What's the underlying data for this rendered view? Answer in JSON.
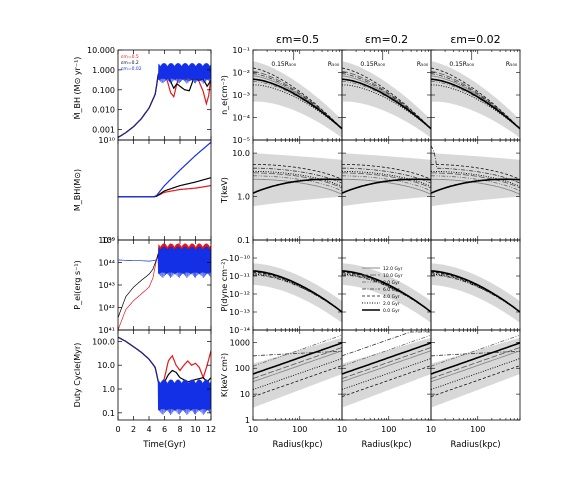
{
  "chart_data": [
    {
      "type": "line",
      "panel": "left-1",
      "ylabel": "Ṁ_BH (M⊙ yr⁻¹)",
      "y_scale": "log",
      "ylim": [
        0.0003,
        10
      ],
      "y_ticks": [
        {
          "value": 10,
          "label": "10.000"
        },
        {
          "value": 1,
          "label": "1.000"
        },
        {
          "value": 0.1,
          "label": "0.100"
        },
        {
          "value": 0.01,
          "label": "0.010"
        },
        {
          "value": 0.001,
          "label": "0.001"
        }
      ],
      "xlim": [
        0,
        12
      ],
      "legend": [
        "εm=0.5",
        "εm=0.2",
        "εm=0.02"
      ],
      "legend_colors": [
        "#e8161b",
        "#000000",
        "#1430e6"
      ],
      "series": [
        {
          "color": "#e8161b",
          "x": [
            0,
            1,
            2,
            3,
            4,
            4.8,
            5.2,
            5.6,
            6.0,
            6.4,
            6.8,
            7.2,
            7.6,
            8.0,
            8.6,
            9.2,
            9.8,
            10.4,
            11.0,
            11.4,
            11.7,
            12.0
          ],
          "y": [
            0.0004,
            0.0007,
            0.0014,
            0.0035,
            0.012,
            0.06,
            0.6,
            1.0,
            0.7,
            0.25,
            0.07,
            0.045,
            0.2,
            0.6,
            0.35,
            0.3,
            0.35,
            0.3,
            0.08,
            0.02,
            0.05,
            0.4
          ]
        },
        {
          "color": "#000000",
          "x": [
            0,
            1,
            2,
            3,
            4,
            4.8,
            5.2,
            5.6,
            6.0,
            6.4,
            6.8,
            7.2,
            7.6,
            8.0,
            8.6,
            9.2,
            9.8,
            10.4,
            11.0,
            11.5,
            12.0
          ],
          "y": [
            0.0004,
            0.0007,
            0.0014,
            0.0035,
            0.012,
            0.06,
            0.6,
            1.0,
            0.8,
            0.5,
            0.25,
            0.12,
            0.2,
            0.15,
            0.1,
            0.09,
            0.4,
            0.3,
            0.35,
            0.15,
            0.3
          ]
        },
        {
          "color": "#1430e6",
          "x": [
            0,
            1,
            2,
            3,
            4,
            4.8,
            5.2,
            5.6,
            6.0,
            7.0,
            8.0,
            9.0,
            10.0,
            11.0,
            12.0
          ],
          "y": [
            0.0004,
            0.0007,
            0.0014,
            0.0035,
            0.012,
            0.06,
            0.5,
            0.9,
            0.7,
            1.0,
            0.9,
            1.2,
            1.3,
            1.4,
            1.5
          ],
          "oscillating": true,
          "osc_band": [
            0.2,
            2.2
          ]
        }
      ]
    },
    {
      "type": "line",
      "panel": "left-2",
      "ylabel": "M_BH(M⊙)",
      "y_scale": "log",
      "ylim": [
        1000000000.0,
        10000000000.0
      ],
      "y_ticks": [
        {
          "value": 10000000000.0,
          "label": "10¹⁰"
        },
        {
          "value": 1000000000.0,
          "label": "10⁹"
        }
      ],
      "xlim": [
        0,
        12
      ],
      "series": [
        {
          "color": "#e8161b",
          "x": [
            0,
            4.6,
            5.0,
            6.0,
            8.0,
            10.0,
            12.0
          ],
          "y": [
            2700000000.0,
            2700000000.0,
            2750000000.0,
            3000000000.0,
            3200000000.0,
            3300000000.0,
            3500000000.0
          ]
        },
        {
          "color": "#000000",
          "x": [
            0,
            4.6,
            5.0,
            6.0,
            8.0,
            10.0,
            12.0
          ],
          "y": [
            2700000000.0,
            2700000000.0,
            2750000000.0,
            3100000000.0,
            3500000000.0,
            3800000000.0,
            4200000000.0
          ]
        },
        {
          "color": "#1430e6",
          "x": [
            0,
            4.6,
            5.0,
            6.0,
            8.0,
            10.0,
            12.0
          ],
          "y": [
            2700000000.0,
            2700000000.0,
            2800000000.0,
            3500000000.0,
            5000000000.0,
            7000000000.0,
            9500000000.0
          ]
        }
      ]
    },
    {
      "type": "line",
      "panel": "left-3",
      "ylabel": "P_el(erg s⁻¹)",
      "y_scale": "log",
      "ylim": [
        1e+41,
        1e+45
      ],
      "y_ticks": [
        {
          "value": 1e+45,
          "label": "10⁴⁵"
        },
        {
          "value": 1e+44,
          "label": "10⁴⁴"
        },
        {
          "value": 1e+43,
          "label": "10⁴³"
        },
        {
          "value": 1e+42,
          "label": "10⁴²"
        },
        {
          "value": 1e+41,
          "label": "10⁴¹"
        }
      ],
      "xlim": [
        0,
        12
      ],
      "series": [
        {
          "color": "#e8161b",
          "x": [
            0,
            1,
            2,
            3,
            4,
            4.5,
            4.9,
            5.3,
            5.6,
            6.0,
            7.0,
            8.0,
            9.0,
            10.0,
            11.0,
            12.0
          ],
          "y": [
            1e+41,
            8e+41,
            2e+42,
            4e+42,
            8e+42,
            2e+43,
            1e+44,
            4e+44,
            8e+44,
            3e+44,
            2e+44,
            4e+44,
            3e+44,
            2e+44,
            4e+44,
            3e+44
          ],
          "oscillating": true,
          "osc_band": [
            5e+43,
            7e+44
          ]
        },
        {
          "color": "#000000",
          "x": [
            0,
            1,
            2,
            3,
            4,
            4.5,
            4.9,
            5.3,
            5.6,
            6.0,
            7.0,
            8.0,
            9.0,
            10.0,
            11.0,
            12.0
          ],
          "y": [
            3.5e+41,
            3e+42,
            8e+42,
            1.6e+43,
            3e+43,
            5e+43,
            1.2e+44,
            3e+44,
            6e+44,
            3e+44,
            2e+44,
            3e+44,
            2e+44,
            2e+44,
            3e+44,
            2e+44
          ],
          "oscillating": true,
          "osc_band": [
            5e+43,
            5e+44
          ]
        },
        {
          "color": "#1430e6",
          "x": [
            0,
            1,
            2,
            3,
            4,
            4.5,
            4.9,
            5.3,
            5.6,
            6.0,
            7.0,
            8.0,
            9.0,
            10.0,
            11.0,
            12.0
          ],
          "y": [
            1.3e+44,
            1.25e+44,
            1.2e+44,
            1.2e+44,
            1.15e+44,
            1.2e+44,
            1.3e+44,
            2e+44,
            3e+44,
            2e+44,
            2e+44,
            2e+44,
            2e+44,
            2e+44,
            2e+44,
            2e+44
          ],
          "oscillating": true,
          "osc_band": [
            2e+43,
            5e+44
          ]
        }
      ]
    },
    {
      "type": "line",
      "panel": "left-4",
      "ylabel": "Duty Cycle(Myr)",
      "xlabel": "Time(Gyr)",
      "y_scale": "log",
      "ylim": [
        0.05,
        300
      ],
      "y_ticks": [
        {
          "value": 100,
          "label": "100.0"
        },
        {
          "value": 10,
          "label": "10.0"
        },
        {
          "value": 1,
          "label": "1.0"
        },
        {
          "value": 0.1,
          "label": "0.1"
        }
      ],
      "xlim": [
        0,
        12
      ],
      "x_ticks": [
        0,
        2,
        4,
        6,
        8,
        10,
        12
      ],
      "series": [
        {
          "color": "#e8161b",
          "x": [
            0,
            1,
            2,
            3,
            4,
            4.8,
            5.2,
            5.6,
            6.0,
            6.5,
            7.0,
            7.5,
            8.0,
            8.5,
            9.0,
            9.5,
            10.0,
            10.5,
            11.0,
            11.5,
            12.0
          ],
          "y": [
            150,
            100,
            60,
            35,
            18,
            8,
            2,
            1,
            3,
            15,
            25,
            10,
            6,
            10,
            15,
            10,
            12,
            8,
            3,
            10,
            40
          ]
        },
        {
          "color": "#000000",
          "x": [
            0,
            1,
            2,
            3,
            4,
            4.8,
            5.2,
            5.6,
            6.0,
            6.5,
            7.0,
            7.5,
            8.0,
            9.0,
            10.0,
            11.0,
            11.5,
            12.0
          ],
          "y": [
            150,
            100,
            60,
            35,
            18,
            8,
            2,
            1.5,
            2,
            4,
            6,
            5,
            3,
            2,
            2.5,
            3,
            2,
            3
          ]
        },
        {
          "color": "#1430e6",
          "x": [
            0,
            1,
            2,
            3,
            4,
            4.8,
            5.2,
            5.6,
            6.0,
            7.0,
            8.0,
            9.0,
            10.0,
            11.0,
            12.0
          ],
          "y": [
            150,
            100,
            60,
            35,
            18,
            8,
            2,
            0.5,
            0.3,
            0.4,
            0.5,
            0.6,
            0.7,
            0.8,
            0.8
          ],
          "oscillating": true,
          "osc_band": [
            0.08,
            2.5
          ]
        }
      ]
    },
    {
      "type": "line",
      "panel": "grid",
      "column_titles": [
        "εm=0.5",
        "εm=0.2",
        "εm=0.02"
      ],
      "xlabel": "Radius(kpc)",
      "x_scale": "log",
      "xlim": [
        10,
        800
      ],
      "x_ticks": [
        {
          "value": 10,
          "label": "10"
        },
        {
          "value": 100,
          "label": "100"
        }
      ],
      "annotations": [
        "0.15R₅₀₀",
        "R₅₀₀"
      ],
      "legend": [
        "12.0 Gyr",
        "10.0 Gyr",
        "8.0 Gyr",
        "6.0 Gyr",
        "4.0 Gyr",
        "2.0 Gyr",
        "0.0 Gyr"
      ],
      "legend_styles": [
        "solid-light",
        "dashed-long",
        "dash-dot-dot",
        "dash-dot",
        "dashed",
        "dotted",
        "solid-thick"
      ],
      "rows": [
        {
          "ylabel": "n_e(cm⁻³)",
          "y_scale": "log",
          "ylim": [
            1e-05,
            0.1
          ],
          "y_ticks": [
            {
              "value": 0.1,
              "label": "10⁻¹"
            },
            {
              "value": 0.01,
              "label": "10⁻²"
            },
            {
              "value": 0.001,
              "label": "10⁻³"
            },
            {
              "value": 0.0001,
              "label": "10⁻⁴"
            },
            {
              "value": 1e-05,
              "label": "10⁻⁵"
            }
          ]
        },
        {
          "ylabel": "T(keV)",
          "y_scale": "log",
          "ylim": [
            0.1,
            20
          ],
          "y_ticks": [
            {
              "value": 10,
              "label": "10.0"
            },
            {
              "value": 1,
              "label": "1.0"
            },
            {
              "value": 0.1,
              "label": "0.1"
            }
          ]
        },
        {
          "ylabel": "P(dyne cm⁻²)",
          "y_scale": "log",
          "ylim": [
            1e-14,
            1e-09
          ],
          "y_ticks": [
            {
              "value": 1e-10,
              "label": "10⁻¹⁰"
            },
            {
              "value": 1e-11,
              "label": "10⁻¹¹"
            },
            {
              "value": 1e-12,
              "label": "10⁻¹²"
            },
            {
              "value": 1e-13,
              "label": "10⁻¹³"
            },
            {
              "value": 1e-14,
              "label": "10⁻¹⁴"
            }
          ]
        },
        {
          "ylabel": "K(keV cm²)",
          "y_scale": "log",
          "ylim": [
            1,
            3000
          ],
          "y_ticks": [
            {
              "value": 1000,
              "label": "1000"
            },
            {
              "value": 100,
              "label": "100"
            },
            {
              "value": 10,
              "label": "10"
            },
            {
              "value": 1,
              "label": "1"
            }
          ]
        }
      ]
    }
  ]
}
